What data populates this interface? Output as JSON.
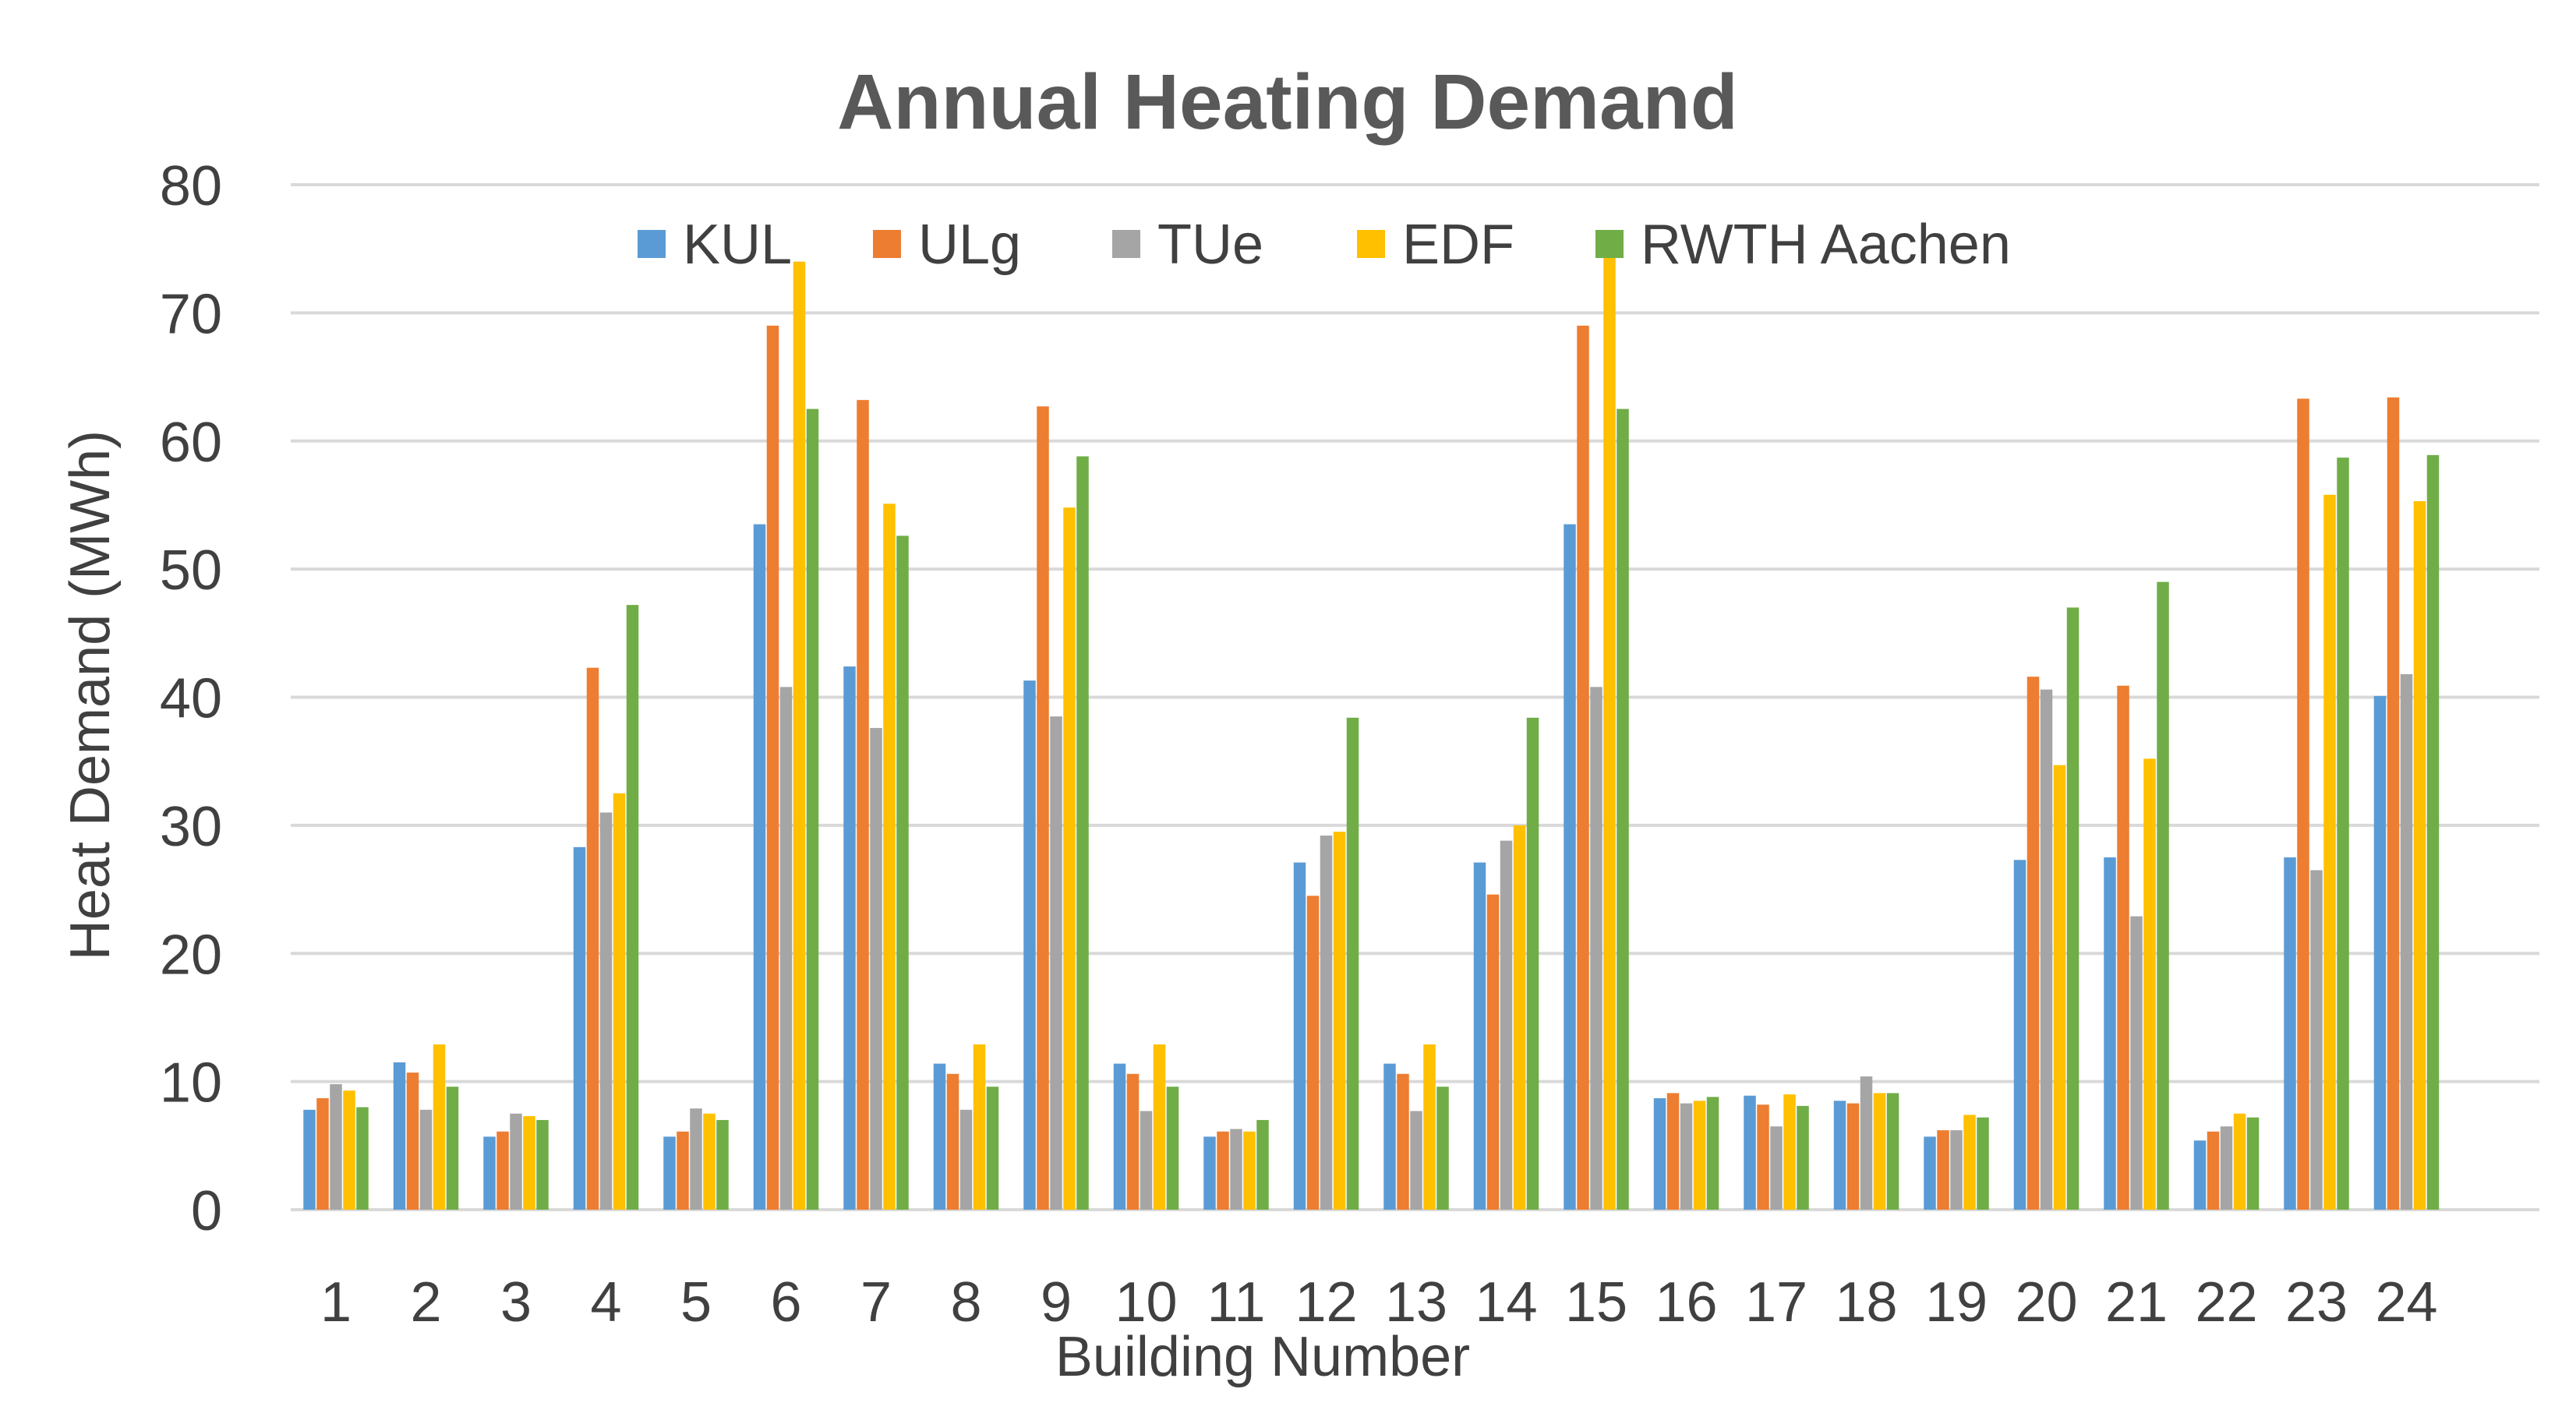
{
  "chart_data": {
    "type": "bar",
    "title": "Annual Heating Demand",
    "xlabel": "Building Number",
    "ylabel": "Heat Demand (MWh)",
    "ylim": [
      0,
      80
    ],
    "yticks": [
      "0",
      "10",
      "20",
      "30",
      "40",
      "50",
      "60",
      "70",
      "80"
    ],
    "grid": true,
    "legend_position": "top",
    "categories": [
      "1",
      "2",
      "3",
      "4",
      "5",
      "6",
      "7",
      "8",
      "9",
      "10",
      "11",
      "12",
      "13",
      "14",
      "15",
      "16",
      "17",
      "18",
      "19",
      "20",
      "21",
      "22",
      "23",
      "24"
    ],
    "series": [
      {
        "name": "KUL",
        "color": "#5b9bd5",
        "values": [
          7.8,
          11.5,
          5.7,
          28.3,
          5.7,
          53.5,
          42.4,
          11.4,
          41.3,
          11.4,
          5.7,
          27.1,
          11.4,
          27.1,
          53.5,
          8.7,
          8.9,
          8.5,
          5.7,
          27.3,
          27.5,
          5.4,
          27.5,
          40.1
        ]
      },
      {
        "name": "ULg",
        "color": "#ed7d31",
        "values": [
          8.7,
          10.7,
          6.1,
          42.3,
          6.1,
          69.0,
          63.2,
          10.6,
          62.7,
          10.6,
          6.1,
          24.5,
          10.6,
          24.6,
          69.0,
          9.1,
          8.2,
          8.3,
          6.2,
          41.6,
          40.9,
          6.1,
          63.3,
          63.4
        ]
      },
      {
        "name": "TUe",
        "color": "#a5a5a5",
        "values": [
          9.8,
          7.8,
          7.5,
          31.0,
          7.9,
          40.8,
          37.6,
          7.8,
          38.5,
          7.7,
          6.3,
          29.2,
          7.7,
          28.8,
          40.8,
          8.3,
          6.5,
          10.4,
          6.2,
          40.6,
          22.9,
          6.5,
          26.5,
          41.8
        ]
      },
      {
        "name": "EDF",
        "color": "#ffc000",
        "values": [
          9.3,
          12.9,
          7.3,
          32.5,
          7.5,
          74.0,
          55.1,
          12.9,
          54.8,
          12.9,
          6.1,
          29.5,
          12.9,
          30.0,
          74.5,
          8.5,
          9.0,
          9.1,
          7.4,
          34.7,
          35.2,
          7.5,
          55.8,
          55.3
        ]
      },
      {
        "name": "RWTH Aachen",
        "color": "#70ad47",
        "values": [
          8.0,
          9.6,
          7.0,
          47.2,
          7.0,
          62.5,
          52.6,
          9.6,
          58.8,
          9.6,
          7.0,
          38.4,
          9.6,
          38.4,
          62.5,
          8.8,
          8.1,
          9.1,
          7.2,
          47.0,
          49.0,
          7.2,
          58.7,
          58.9
        ]
      }
    ]
  }
}
